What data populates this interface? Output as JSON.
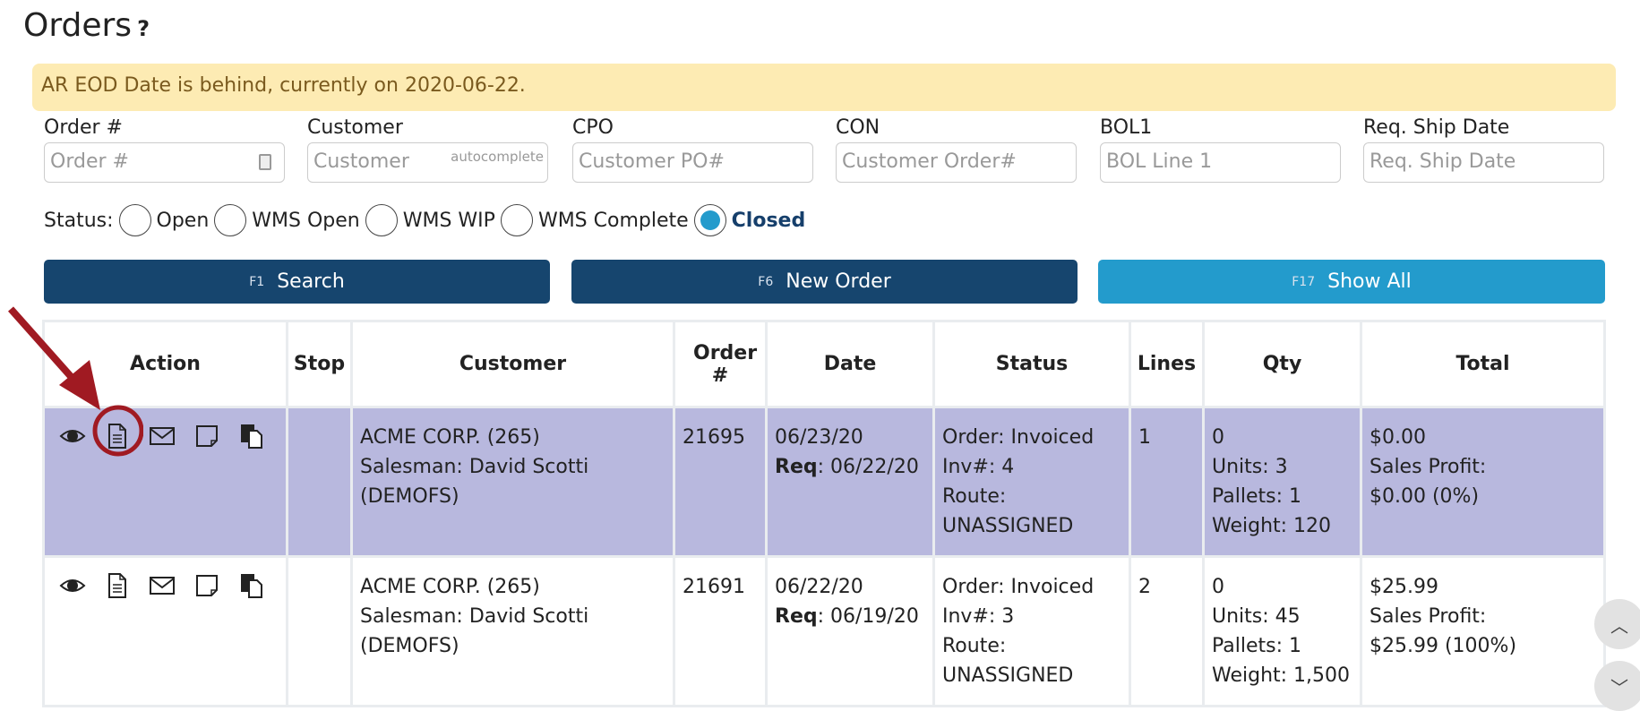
{
  "page": {
    "title": "Orders",
    "help": "?"
  },
  "alert": "AR EOD Date is behind, currently on 2020-06-22.",
  "filters": [
    {
      "label": "Order #",
      "placeholder": "Order #"
    },
    {
      "label": "Customer",
      "placeholder": "Customer",
      "hint": "autocomplete"
    },
    {
      "label": "CPO",
      "placeholder": "Customer PO#"
    },
    {
      "label": "CON",
      "placeholder": "Customer Order#"
    },
    {
      "label": "BOL1",
      "placeholder": "BOL Line 1"
    },
    {
      "label": "Req. Ship Date",
      "placeholder": "Req. Ship Date"
    }
  ],
  "status": {
    "label": "Status:",
    "options": [
      "Open",
      "WMS Open",
      "WMS WIP",
      "WMS Complete",
      "Closed"
    ],
    "selected": "Closed"
  },
  "buttons": [
    {
      "key": "F1",
      "label": "Search"
    },
    {
      "key": "F6",
      "label": "New Order"
    },
    {
      "key": "F17",
      "label": "Show All"
    }
  ],
  "colors": {
    "primary": "#16456e",
    "accent": "#239bcc",
    "selected_row": "#b8b8de",
    "alert_bg": "#fdebb3",
    "annotation": "#a01a22"
  },
  "table": {
    "headers": [
      "Action",
      "Stop",
      "Customer",
      "Order #",
      "Date",
      "Status",
      "Lines",
      "Qty",
      "Total"
    ],
    "rows": [
      {
        "customer": "ACME CORP. (265)",
        "salesman": "Salesman: David Scotti",
        "salesman_code": "(DEMOFS)",
        "order": "21695",
        "date": "06/23/20",
        "req_label": "Req",
        "req": ": 06/22/20",
        "status": "Order: Invoiced",
        "inv": "Inv#: 4",
        "route_label": "Route:",
        "route": "UNASSIGNED",
        "lines": "1",
        "qty": "0",
        "units": "Units: 3",
        "pallets": "Pallets: 1",
        "weight": "Weight: 120",
        "total": "$0.00",
        "profit_label": "Sales Profit:",
        "profit": "$0.00 (0%)"
      },
      {
        "customer": "ACME CORP. (265)",
        "salesman": "Salesman: David Scotti",
        "salesman_code": "(DEMOFS)",
        "order": "21691",
        "date": "06/22/20",
        "req_label": "Req",
        "req": ": 06/19/20",
        "status": "Order: Invoiced",
        "inv": "Inv#: 3",
        "route_label": "Route:",
        "route": "UNASSIGNED",
        "lines": "2",
        "qty": "0",
        "units": "Units: 45",
        "pallets": "Pallets: 1",
        "weight": "Weight: 1,500",
        "total": "$25.99",
        "profit_label": "Sales Profit:",
        "profit": "$25.99 (100%)"
      }
    ],
    "action_icons": [
      "eye-icon",
      "document-icon",
      "envelope-icon",
      "note-icon",
      "copy-icon"
    ]
  }
}
